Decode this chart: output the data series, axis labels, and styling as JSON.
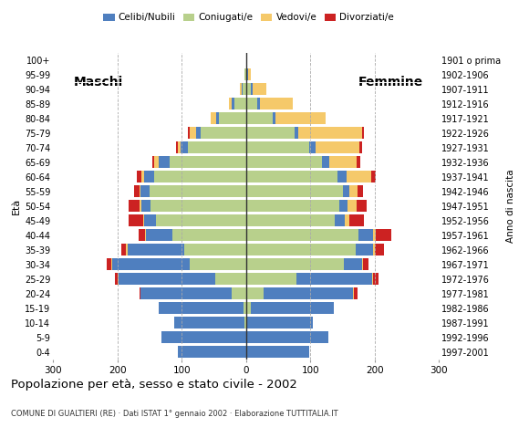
{
  "age_groups": [
    "100+",
    "95-99",
    "90-94",
    "85-89",
    "80-84",
    "75-79",
    "70-74",
    "65-69",
    "60-64",
    "55-59",
    "50-54",
    "45-49",
    "40-44",
    "35-39",
    "30-34",
    "25-29",
    "20-24",
    "15-19",
    "10-14",
    "5-9",
    "0-4"
  ],
  "birth_years": [
    "1901 o prima",
    "1902-1906",
    "1907-1911",
    "1912-1916",
    "1917-1921",
    "1922-1926",
    "1927-1931",
    "1932-1936",
    "1937-1941",
    "1942-1946",
    "1947-1951",
    "1952-1956",
    "1957-1961",
    "1962-1966",
    "1967-1971",
    "1972-1976",
    "1977-1981",
    "1982-1986",
    "1987-1991",
    "1992-1996",
    "1997-2001"
  ],
  "males": {
    "celibe": [
      0,
      1,
      2,
      4,
      5,
      8,
      12,
      18,
      16,
      14,
      15,
      18,
      40,
      88,
      120,
      150,
      142,
      132,
      110,
      132,
      106
    ],
    "coniugato": [
      0,
      2,
      5,
      18,
      42,
      70,
      90,
      118,
      142,
      150,
      148,
      140,
      115,
      96,
      88,
      48,
      22,
      4,
      2,
      0,
      0
    ],
    "vedovo": [
      0,
      0,
      2,
      4,
      8,
      10,
      4,
      7,
      4,
      2,
      2,
      2,
      2,
      2,
      2,
      1,
      0,
      0,
      0,
      0,
      0
    ],
    "divorziato": [
      0,
      0,
      0,
      0,
      0,
      2,
      2,
      3,
      8,
      8,
      18,
      22,
      10,
      8,
      6,
      4,
      2,
      0,
      0,
      0,
      0
    ]
  },
  "females": {
    "nubile": [
      0,
      1,
      3,
      3,
      4,
      6,
      10,
      12,
      14,
      10,
      13,
      15,
      22,
      28,
      28,
      118,
      138,
      128,
      102,
      128,
      98
    ],
    "coniugata": [
      0,
      2,
      8,
      18,
      42,
      75,
      98,
      118,
      142,
      150,
      145,
      138,
      175,
      170,
      152,
      78,
      28,
      8,
      2,
      0,
      0
    ],
    "vedova": [
      1,
      5,
      20,
      52,
      78,
      100,
      68,
      42,
      38,
      14,
      14,
      8,
      4,
      2,
      2,
      2,
      2,
      0,
      0,
      0,
      0
    ],
    "divorziata": [
      0,
      0,
      0,
      0,
      0,
      2,
      5,
      5,
      8,
      8,
      15,
      22,
      25,
      15,
      8,
      8,
      5,
      0,
      0,
      0,
      0
    ]
  },
  "colors": {
    "celibe": "#4f7fbf",
    "coniugato": "#b8d08c",
    "vedovo": "#f5c96a",
    "divorziato": "#cc2222"
  },
  "title": "Popolazione per età, sesso e stato civile - 2002",
  "subtitle": "COMUNE DI GUALTIERI (RE) · Dati ISTAT 1° gennaio 2002 · Elaborazione TUTTITALIA.IT",
  "label_maschi": "Maschi",
  "label_femmine": "Femmine",
  "xlim": 300,
  "legend_labels": [
    "Celibi/Nubili",
    "Coniugati/e",
    "Vedovi/e",
    "Divorziati/e"
  ],
  "ylabel": "Età",
  "ylabel_right": "Anno di nascita"
}
